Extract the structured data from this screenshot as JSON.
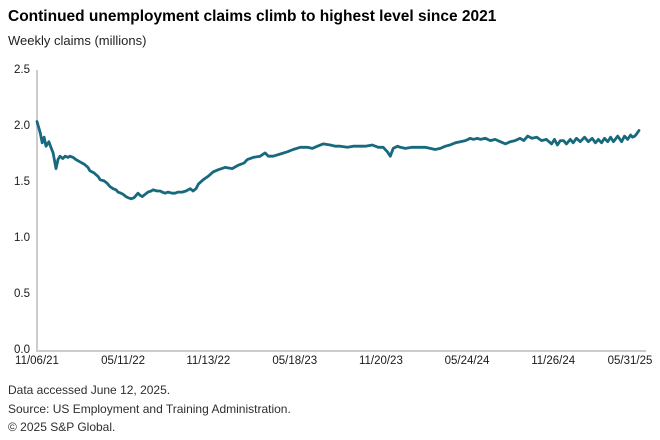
{
  "header": {
    "title": "Continued unemployment claims climb to highest level since 2021",
    "subtitle": "Weekly claims (millions)"
  },
  "footer": {
    "line1": "Data accessed June 12, 2025.",
    "line2": "Source: US Employment and Training Administration.",
    "line3": "© 2025 S&P Global."
  },
  "chart_data": {
    "type": "line",
    "title": "Continued unemployment claims climb to highest level since 2021",
    "ylabel": "Weekly claims (millions)",
    "xlabel": "",
    "ylim": [
      0,
      2.5
    ],
    "grid": false,
    "legend": "none",
    "y_tick_labels": [
      "2.5",
      "2.0",
      "1.5",
      "1.0",
      "0.5",
      "0.0"
    ],
    "y_tick_values": [
      2.5,
      2.0,
      1.5,
      1.0,
      0.5,
      0.0
    ],
    "x_tick_labels": [
      "11/06/21",
      "05/11/22",
      "11/13/22",
      "05/18/23",
      "11/20/23",
      "05/24/24",
      "11/26/24",
      "05/31/25"
    ],
    "x_tick_weeks": [
      0,
      26.7,
      53.1,
      79.9,
      106.6,
      133.3,
      160.0,
      186.6
    ],
    "line_color": "#17697E",
    "axis_color": "#cccccc",
    "series": [
      {
        "name": "Continued claims, weekly (millions)",
        "x_unit": "weeks since 11/06/21",
        "points": [
          [
            0,
            2.04
          ],
          [
            0.5,
            1.99
          ],
          [
            1,
            1.94
          ],
          [
            1.6,
            1.85
          ],
          [
            2.2,
            1.9
          ],
          [
            2.8,
            1.82
          ],
          [
            3.7,
            1.86
          ],
          [
            4.3,
            1.81
          ],
          [
            5,
            1.76
          ],
          [
            5.9,
            1.62
          ],
          [
            6.5,
            1.7
          ],
          [
            7.1,
            1.73
          ],
          [
            8,
            1.71
          ],
          [
            8.7,
            1.73
          ],
          [
            9.6,
            1.72
          ],
          [
            10.2,
            1.73
          ],
          [
            11.2,
            1.72
          ],
          [
            12.1,
            1.7
          ],
          [
            13.3,
            1.68
          ],
          [
            14.6,
            1.66
          ],
          [
            15.8,
            1.63
          ],
          [
            16.4,
            1.6
          ],
          [
            17.7,
            1.58
          ],
          [
            18.9,
            1.55
          ],
          [
            19.6,
            1.52
          ],
          [
            20.8,
            1.51
          ],
          [
            21.7,
            1.49
          ],
          [
            22.6,
            1.46
          ],
          [
            23.6,
            1.44
          ],
          [
            24.5,
            1.43
          ],
          [
            25.1,
            1.41
          ],
          [
            26,
            1.4
          ],
          [
            26.7,
            1.39
          ],
          [
            27.6,
            1.37
          ],
          [
            28.2,
            1.36
          ],
          [
            29.2,
            1.35
          ],
          [
            30.1,
            1.36
          ],
          [
            31.3,
            1.4
          ],
          [
            32,
            1.38
          ],
          [
            32.6,
            1.37
          ],
          [
            33.5,
            1.39
          ],
          [
            34.4,
            1.41
          ],
          [
            35.4,
            1.42
          ],
          [
            36,
            1.43
          ],
          [
            37.2,
            1.42
          ],
          [
            38.2,
            1.42
          ],
          [
            38.8,
            1.41
          ],
          [
            39.7,
            1.4
          ],
          [
            40.6,
            1.41
          ],
          [
            41.9,
            1.4
          ],
          [
            42.8,
            1.4
          ],
          [
            43.7,
            1.41
          ],
          [
            45,
            1.41
          ],
          [
            46.2,
            1.42
          ],
          [
            47.5,
            1.44
          ],
          [
            48.4,
            1.42
          ],
          [
            49.3,
            1.44
          ],
          [
            50,
            1.48
          ],
          [
            51.5,
            1.52
          ],
          [
            53,
            1.55
          ],
          [
            54.6,
            1.59
          ],
          [
            56.2,
            1.61
          ],
          [
            58.3,
            1.63
          ],
          [
            60.5,
            1.62
          ],
          [
            62.4,
            1.65
          ],
          [
            64.2,
            1.67
          ],
          [
            65.2,
            1.7
          ],
          [
            67,
            1.72
          ],
          [
            69.2,
            1.73
          ],
          [
            70.7,
            1.76
          ],
          [
            71.7,
            1.73
          ],
          [
            73.2,
            1.73
          ],
          [
            75.4,
            1.75
          ],
          [
            77.6,
            1.77
          ],
          [
            79.4,
            1.79
          ],
          [
            81.6,
            1.81
          ],
          [
            83.8,
            1.81
          ],
          [
            85.3,
            1.8
          ],
          [
            86.9,
            1.82
          ],
          [
            88.7,
            1.84
          ],
          [
            90.9,
            1.83
          ],
          [
            92.5,
            1.82
          ],
          [
            94,
            1.82
          ],
          [
            96.2,
            1.81
          ],
          [
            98,
            1.82
          ],
          [
            99.6,
            1.82
          ],
          [
            101.8,
            1.82
          ],
          [
            103.9,
            1.83
          ],
          [
            105.8,
            1.81
          ],
          [
            107.3,
            1.81
          ],
          [
            108.6,
            1.77
          ],
          [
            109.5,
            1.73
          ],
          [
            110.4,
            1.8
          ],
          [
            111.7,
            1.82
          ],
          [
            112.6,
            1.81
          ],
          [
            114.2,
            1.8
          ],
          [
            116.3,
            1.81
          ],
          [
            118.2,
            1.81
          ],
          [
            120.3,
            1.81
          ],
          [
            121.9,
            1.8
          ],
          [
            123.4,
            1.79
          ],
          [
            125,
            1.8
          ],
          [
            126.6,
            1.82
          ],
          [
            128,
            1.83
          ],
          [
            129.7,
            1.85
          ],
          [
            131.2,
            1.86
          ],
          [
            132.8,
            1.87
          ],
          [
            134.3,
            1.89
          ],
          [
            135.3,
            1.88
          ],
          [
            136.5,
            1.89
          ],
          [
            137.5,
            1.88
          ],
          [
            139,
            1.89
          ],
          [
            140.5,
            1.87
          ],
          [
            142,
            1.88
          ],
          [
            143.6,
            1.86
          ],
          [
            145.2,
            1.84
          ],
          [
            146.7,
            1.86
          ],
          [
            148.2,
            1.87
          ],
          [
            149.7,
            1.89
          ],
          [
            150.9,
            1.87
          ],
          [
            152.1,
            1.91
          ],
          [
            153.4,
            1.89
          ],
          [
            154.9,
            1.9
          ],
          [
            156.4,
            1.87
          ],
          [
            157.9,
            1.88
          ],
          [
            159.5,
            1.84
          ],
          [
            160.4,
            1.88
          ],
          [
            161.3,
            1.83
          ],
          [
            162.2,
            1.87
          ],
          [
            163.2,
            1.87
          ],
          [
            164.1,
            1.84
          ],
          [
            165.3,
            1.88
          ],
          [
            166.2,
            1.85
          ],
          [
            167.2,
            1.89
          ],
          [
            168.4,
            1.86
          ],
          [
            169.7,
            1.9
          ],
          [
            170.9,
            1.86
          ],
          [
            172.1,
            1.89
          ],
          [
            173.1,
            1.85
          ],
          [
            174,
            1.88
          ],
          [
            175,
            1.85
          ],
          [
            175.9,
            1.89
          ],
          [
            176.9,
            1.86
          ],
          [
            177.8,
            1.9
          ],
          [
            178.7,
            1.86
          ],
          [
            180,
            1.91
          ],
          [
            181.2,
            1.86
          ],
          [
            182.1,
            1.91
          ],
          [
            183.1,
            1.88
          ],
          [
            184,
            1.92
          ],
          [
            184.6,
            1.9
          ],
          [
            185.3,
            1.91
          ],
          [
            185.9,
            1.93
          ],
          [
            186.6,
            1.96
          ]
        ]
      }
    ]
  }
}
